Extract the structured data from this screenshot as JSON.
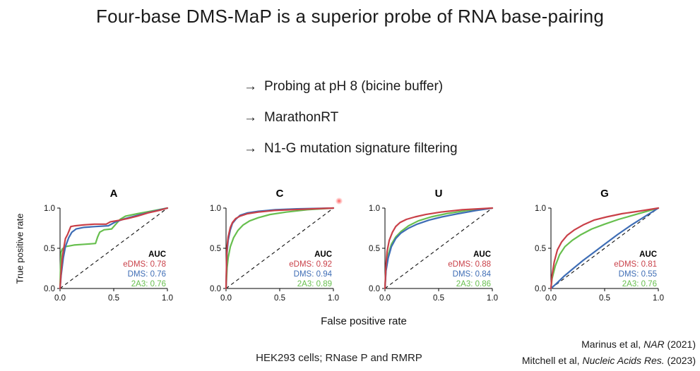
{
  "slide": {
    "title": "Four-base DMS-MaP is a superior probe of RNA base-pairing",
    "bullets": [
      {
        "arrow": "→",
        "text": "Probing at pH 8 (bicine buffer)"
      },
      {
        "arrow": "→",
        "text": "MarathonRT"
      },
      {
        "arrow": "→",
        "text": "N1-G mutation signature filtering"
      }
    ],
    "footer_note": "HEK293 cells; RNase P and RMRP",
    "citations": [
      {
        "prefix": "Marinus et al, ",
        "journal": "NAR",
        "suffix": " (2021)"
      },
      {
        "prefix": "Mitchell et al, ",
        "journal": "Nucleic Acids Res.",
        "suffix": " (2023)"
      }
    ]
  },
  "axes": {
    "xlabel": "False positive rate",
    "ylabel": "True positive rate",
    "xticks": [
      "0.0",
      "0.5",
      "1.0"
    ],
    "yticks": [
      "0.0",
      "0.5",
      "1.0"
    ]
  },
  "legend_title": "AUC",
  "colors": {
    "eDMS": "#c94048",
    "DMS": "#3e6db5",
    "2A3": "#67bf4e"
  },
  "chart_data": [
    {
      "type": "line",
      "title": "A",
      "xlim": [
        0,
        1
      ],
      "ylim": [
        0,
        1
      ],
      "xticks": [
        0,
        0.5,
        1
      ],
      "yticks": [
        0,
        0.5,
        1
      ],
      "diagonal_reference": true,
      "series": [
        {
          "name": "eDMS",
          "auc": 0.78,
          "color": "#c94048",
          "points": [
            [
              0,
              0
            ],
            [
              0.01,
              0.2
            ],
            [
              0.02,
              0.36
            ],
            [
              0.03,
              0.47
            ],
            [
              0.05,
              0.62
            ],
            [
              0.07,
              0.67
            ],
            [
              0.1,
              0.77
            ],
            [
              0.14,
              0.78
            ],
            [
              0.22,
              0.79
            ],
            [
              0.32,
              0.8
            ],
            [
              0.43,
              0.8
            ],
            [
              0.47,
              0.83
            ],
            [
              0.56,
              0.85
            ],
            [
              0.63,
              0.87
            ],
            [
              0.72,
              0.9
            ],
            [
              0.82,
              0.94
            ],
            [
              0.92,
              0.97
            ],
            [
              1,
              1
            ]
          ]
        },
        {
          "name": "DMS",
          "auc": 0.76,
          "color": "#3e6db5",
          "points": [
            [
              0,
              0
            ],
            [
              0.01,
              0.16
            ],
            [
              0.03,
              0.38
            ],
            [
              0.05,
              0.52
            ],
            [
              0.08,
              0.63
            ],
            [
              0.11,
              0.7
            ],
            [
              0.15,
              0.74
            ],
            [
              0.22,
              0.76
            ],
            [
              0.33,
              0.77
            ],
            [
              0.45,
              0.78
            ],
            [
              0.52,
              0.83
            ],
            [
              0.61,
              0.87
            ],
            [
              0.72,
              0.91
            ],
            [
              0.84,
              0.95
            ],
            [
              1,
              1
            ]
          ]
        },
        {
          "name": "2A3",
          "auc": 0.76,
          "color": "#67bf4e",
          "points": [
            [
              0,
              0
            ],
            [
              0.005,
              0.3
            ],
            [
              0.01,
              0.45
            ],
            [
              0.02,
              0.49
            ],
            [
              0.05,
              0.52
            ],
            [
              0.13,
              0.54
            ],
            [
              0.23,
              0.55
            ],
            [
              0.33,
              0.56
            ],
            [
              0.35,
              0.64
            ],
            [
              0.37,
              0.7
            ],
            [
              0.41,
              0.73
            ],
            [
              0.48,
              0.74
            ],
            [
              0.52,
              0.8
            ],
            [
              0.56,
              0.86
            ],
            [
              0.61,
              0.9
            ],
            [
              0.72,
              0.93
            ],
            [
              0.84,
              0.96
            ],
            [
              1,
              1
            ]
          ]
        }
      ]
    },
    {
      "type": "line",
      "title": "C",
      "xlim": [
        0,
        1
      ],
      "ylim": [
        0,
        1
      ],
      "xticks": [
        0,
        0.5,
        1
      ],
      "yticks": [
        0,
        0.5,
        1
      ],
      "diagonal_reference": true,
      "series": [
        {
          "name": "eDMS",
          "auc": 0.92,
          "color": "#c94048",
          "points": [
            [
              0,
              0
            ],
            [
              0.005,
              0.35
            ],
            [
              0.01,
              0.52
            ],
            [
              0.02,
              0.64
            ],
            [
              0.04,
              0.76
            ],
            [
              0.06,
              0.82
            ],
            [
              0.09,
              0.87
            ],
            [
              0.13,
              0.9
            ],
            [
              0.2,
              0.93
            ],
            [
              0.3,
              0.95
            ],
            [
              0.45,
              0.97
            ],
            [
              0.62,
              0.98
            ],
            [
              0.8,
              0.99
            ],
            [
              1,
              1
            ]
          ]
        },
        {
          "name": "DMS",
          "auc": 0.94,
          "color": "#3e6db5",
          "points": [
            [
              0,
              0
            ],
            [
              0.005,
              0.3
            ],
            [
              0.01,
              0.46
            ],
            [
              0.02,
              0.6
            ],
            [
              0.04,
              0.73
            ],
            [
              0.06,
              0.81
            ],
            [
              0.09,
              0.86
            ],
            [
              0.13,
              0.91
            ],
            [
              0.2,
              0.94
            ],
            [
              0.3,
              0.96
            ],
            [
              0.46,
              0.98
            ],
            [
              0.66,
              0.99
            ],
            [
              1,
              1
            ]
          ]
        },
        {
          "name": "2A3",
          "auc": 0.89,
          "color": "#67bf4e",
          "points": [
            [
              0,
              0
            ],
            [
              0.01,
              0.26
            ],
            [
              0.02,
              0.38
            ],
            [
              0.04,
              0.52
            ],
            [
              0.07,
              0.63
            ],
            [
              0.11,
              0.72
            ],
            [
              0.16,
              0.79
            ],
            [
              0.22,
              0.84
            ],
            [
              0.3,
              0.88
            ],
            [
              0.41,
              0.92
            ],
            [
              0.56,
              0.95
            ],
            [
              0.76,
              0.98
            ],
            [
              1,
              1
            ]
          ]
        }
      ]
    },
    {
      "type": "line",
      "title": "U",
      "xlim": [
        0,
        1
      ],
      "ylim": [
        0,
        1
      ],
      "xticks": [
        0,
        0.5,
        1
      ],
      "yticks": [
        0,
        0.5,
        1
      ],
      "diagonal_reference": true,
      "series": [
        {
          "name": "eDMS",
          "auc": 0.88,
          "color": "#c94048",
          "points": [
            [
              0,
              0
            ],
            [
              0.01,
              0.3
            ],
            [
              0.02,
              0.46
            ],
            [
              0.04,
              0.6
            ],
            [
              0.07,
              0.7
            ],
            [
              0.1,
              0.77
            ],
            [
              0.14,
              0.82
            ],
            [
              0.2,
              0.86
            ],
            [
              0.28,
              0.89
            ],
            [
              0.38,
              0.92
            ],
            [
              0.52,
              0.95
            ],
            [
              0.72,
              0.98
            ],
            [
              1,
              1
            ]
          ]
        },
        {
          "name": "DMS",
          "auc": 0.84,
          "color": "#3e6db5",
          "points": [
            [
              0,
              0
            ],
            [
              0.01,
              0.22
            ],
            [
              0.03,
              0.38
            ],
            [
              0.06,
              0.52
            ],
            [
              0.1,
              0.62
            ],
            [
              0.15,
              0.69
            ],
            [
              0.22,
              0.75
            ],
            [
              0.3,
              0.8
            ],
            [
              0.41,
              0.85
            ],
            [
              0.53,
              0.89
            ],
            [
              0.68,
              0.93
            ],
            [
              0.85,
              0.97
            ],
            [
              1,
              1
            ]
          ]
        },
        {
          "name": "2A3",
          "auc": 0.86,
          "color": "#67bf4e",
          "points": [
            [
              0,
              0
            ],
            [
              0.01,
              0.26
            ],
            [
              0.03,
              0.42
            ],
            [
              0.06,
              0.55
            ],
            [
              0.1,
              0.64
            ],
            [
              0.15,
              0.71
            ],
            [
              0.22,
              0.78
            ],
            [
              0.31,
              0.84
            ],
            [
              0.43,
              0.89
            ],
            [
              0.57,
              0.93
            ],
            [
              0.76,
              0.97
            ],
            [
              1,
              1
            ]
          ]
        }
      ]
    },
    {
      "type": "line",
      "title": "G",
      "xlim": [
        0,
        1
      ],
      "ylim": [
        0,
        1
      ],
      "xticks": [
        0,
        0.5,
        1
      ],
      "yticks": [
        0,
        0.5,
        1
      ],
      "diagonal_reference": true,
      "series": [
        {
          "name": "eDMS",
          "auc": 0.81,
          "color": "#c94048",
          "points": [
            [
              0,
              0
            ],
            [
              0.01,
              0.16
            ],
            [
              0.03,
              0.33
            ],
            [
              0.06,
              0.48
            ],
            [
              0.1,
              0.58
            ],
            [
              0.15,
              0.66
            ],
            [
              0.22,
              0.73
            ],
            [
              0.3,
              0.79
            ],
            [
              0.4,
              0.85
            ],
            [
              0.52,
              0.89
            ],
            [
              0.66,
              0.93
            ],
            [
              0.81,
              0.96
            ],
            [
              1,
              1
            ]
          ]
        },
        {
          "name": "DMS",
          "auc": 0.55,
          "color": "#3e6db5",
          "points": [
            [
              0,
              0
            ],
            [
              0.05,
              0.06
            ],
            [
              0.12,
              0.15
            ],
            [
              0.2,
              0.24
            ],
            [
              0.3,
              0.35
            ],
            [
              0.4,
              0.45
            ],
            [
              0.5,
              0.55
            ],
            [
              0.62,
              0.67
            ],
            [
              0.75,
              0.79
            ],
            [
              0.88,
              0.9
            ],
            [
              1,
              1
            ]
          ]
        },
        {
          "name": "2A3",
          "auc": 0.76,
          "color": "#67bf4e",
          "points": [
            [
              0,
              0
            ],
            [
              0.01,
              0.12
            ],
            [
              0.04,
              0.28
            ],
            [
              0.08,
              0.42
            ],
            [
              0.13,
              0.52
            ],
            [
              0.2,
              0.6
            ],
            [
              0.28,
              0.67
            ],
            [
              0.38,
              0.74
            ],
            [
              0.5,
              0.8
            ],
            [
              0.63,
              0.86
            ],
            [
              0.79,
              0.92
            ],
            [
              1,
              1
            ]
          ]
        }
      ]
    }
  ]
}
